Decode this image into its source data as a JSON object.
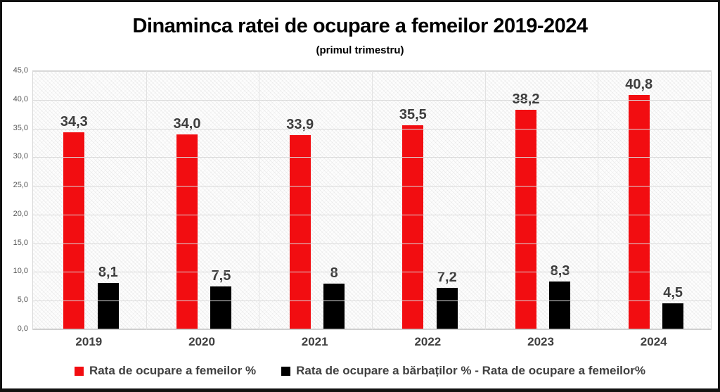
{
  "chart_data": {
    "type": "bar",
    "title": "Dinaminca ratei de ocupare a femeilor 2019-2024",
    "subtitle": "(primul trimestru)",
    "categories": [
      "2019",
      "2020",
      "2021",
      "2022",
      "2023",
      "2024"
    ],
    "series": [
      {
        "name": "Rata de ocupare a femeilor %",
        "color": "#f20d11",
        "values": [
          34.3,
          34.0,
          33.9,
          35.5,
          38.2,
          40.8
        ],
        "labels": [
          "34,3",
          "34,0",
          "33,9",
          "35,5",
          "38,2",
          "40,8"
        ]
      },
      {
        "name": "Rata de ocupare a bărbaților % - Rata de ocupare a femeilor%",
        "color": "#000000",
        "values": [
          8.1,
          7.5,
          8.0,
          7.2,
          8.3,
          4.5
        ],
        "labels": [
          "8,1",
          "7,5",
          "8",
          "7,2",
          "8,3",
          "4,5"
        ]
      }
    ],
    "ylim": [
      0,
      45
    ],
    "ytick_step": 5,
    "ytick_labels": [
      "0,0",
      "5,0",
      "10,0",
      "15,0",
      "20,0",
      "25,0",
      "30,0",
      "35,0",
      "40,0",
      "45,0"
    ],
    "grid": true,
    "legend_position": "bottom"
  }
}
